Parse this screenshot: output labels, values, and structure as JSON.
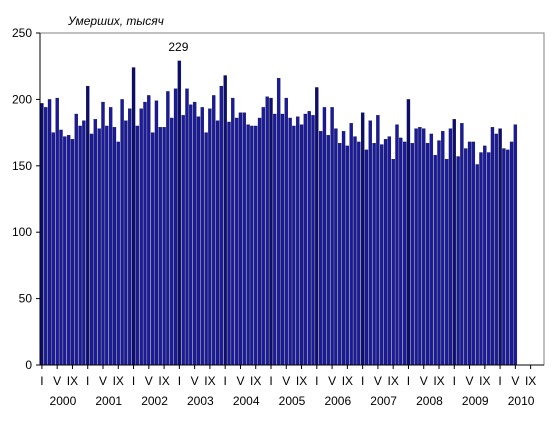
{
  "chart_data": {
    "type": "bar",
    "ylabel": "Умерших, тысяч",
    "ylim": [
      0,
      250
    ],
    "yticks": [
      0,
      50,
      100,
      150,
      200,
      250
    ],
    "grid": false,
    "legend": "none",
    "colors": {
      "bar_normal": "#1a1a9c",
      "bar_january": "#0d0d6e",
      "bar_stroke": "#000033",
      "axis": "#000000",
      "frame": "#808080"
    },
    "month_tick_labels": [
      "I",
      "V",
      "IX"
    ],
    "years": [
      "2000",
      "2001",
      "2002",
      "2003",
      "2004",
      "2005",
      "2006",
      "2007",
      "2008",
      "2009",
      "2010"
    ],
    "annotation": {
      "text": "229",
      "year": "2003",
      "month": 1
    },
    "series": [
      {
        "values": [
          197,
          194,
          200,
          175,
          201,
          177,
          172,
          173,
          170,
          189,
          180,
          184,
          210,
          174,
          185,
          178,
          198,
          180,
          194,
          179,
          168,
          200,
          184,
          193,
          224,
          180,
          193,
          198,
          203,
          175,
          199,
          179,
          179,
          206,
          186,
          208,
          229,
          188,
          208,
          196,
          198,
          187,
          194,
          175,
          193,
          203,
          184,
          210,
          218,
          183,
          201,
          186,
          190,
          190,
          181,
          180,
          180,
          186,
          194,
          202,
          201,
          189,
          216,
          189,
          201,
          186,
          180,
          187,
          181,
          189,
          191,
          188,
          209,
          176,
          194,
          173,
          194,
          178,
          167,
          176,
          165,
          182,
          172,
          168,
          190,
          162,
          184,
          167,
          188,
          166,
          170,
          172,
          155,
          181,
          171,
          168,
          200,
          167,
          178,
          179,
          178,
          167,
          174,
          158,
          169,
          176,
          155,
          178,
          185,
          157,
          182,
          163,
          168,
          168,
          151,
          160,
          165,
          160,
          179,
          174,
          178,
          163,
          162,
          168,
          181,
          0,
          0,
          0,
          0,
          0,
          0,
          0
        ]
      }
    ]
  }
}
